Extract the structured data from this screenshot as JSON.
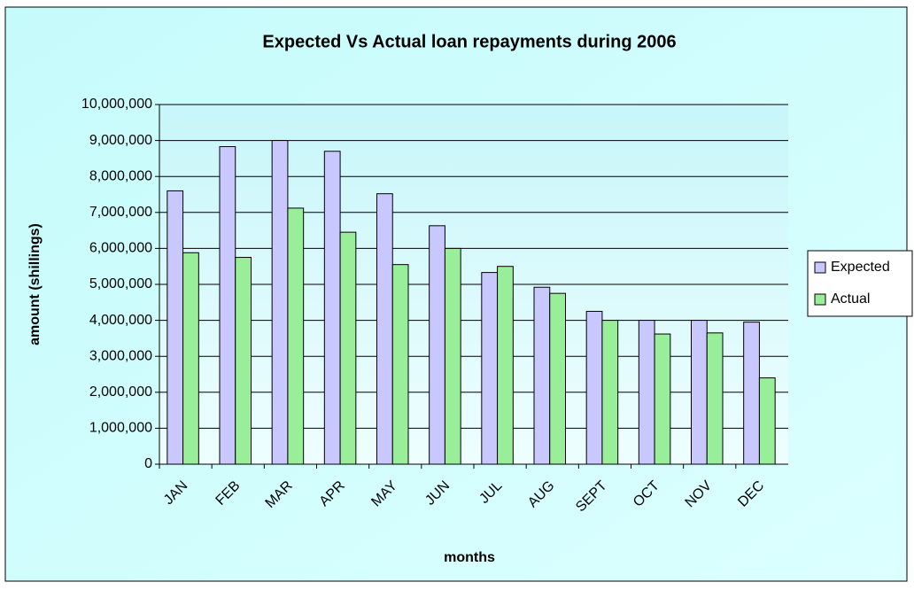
{
  "chart_data": {
    "type": "bar",
    "title": "Expected Vs Actual loan repayments during 2006",
    "x_label": "months",
    "y_label": "amount (shillings)",
    "categories": [
      "JAN",
      "FEB",
      "MAR",
      "APR",
      "MAY",
      "JUN",
      "JUL",
      "AUG",
      "SEPT",
      "OCT",
      "NOV",
      "DEC"
    ],
    "series": [
      {
        "name": "Expected",
        "color": "#c8c8ff",
        "values": [
          7600000,
          8830000,
          9000000,
          8700000,
          7520000,
          6630000,
          5330000,
          4920000,
          4250000,
          4000000,
          4000000,
          3950000
        ]
      },
      {
        "name": "Actual",
        "color": "#99ee99",
        "values": [
          5880000,
          5750000,
          7120000,
          6450000,
          5550000,
          6000000,
          5500000,
          4750000,
          4000000,
          3620000,
          3650000,
          2400000
        ]
      }
    ],
    "ylim": [
      0,
      10000000
    ],
    "yticks": [
      0,
      {
        "value": 1000000,
        "label": "1,000,000"
      },
      {
        "value": 2000000,
        "label": "2,000,000"
      },
      {
        "value": 3000000,
        "label": "3,000,000"
      },
      {
        "value": 4000000,
        "label": "4,000,000"
      },
      {
        "value": 5000000,
        "label": "5,000,000"
      },
      {
        "value": 6000000,
        "label": "6,000,000"
      },
      {
        "value": 7000000,
        "label": "7,000,000"
      },
      {
        "value": 8000000,
        "label": "8,000,000"
      },
      {
        "value": 9000000,
        "label": "9,000,000"
      },
      {
        "value": 10000000,
        "label": "10,000,000"
      }
    ],
    "grid": true,
    "legend": "right"
  }
}
